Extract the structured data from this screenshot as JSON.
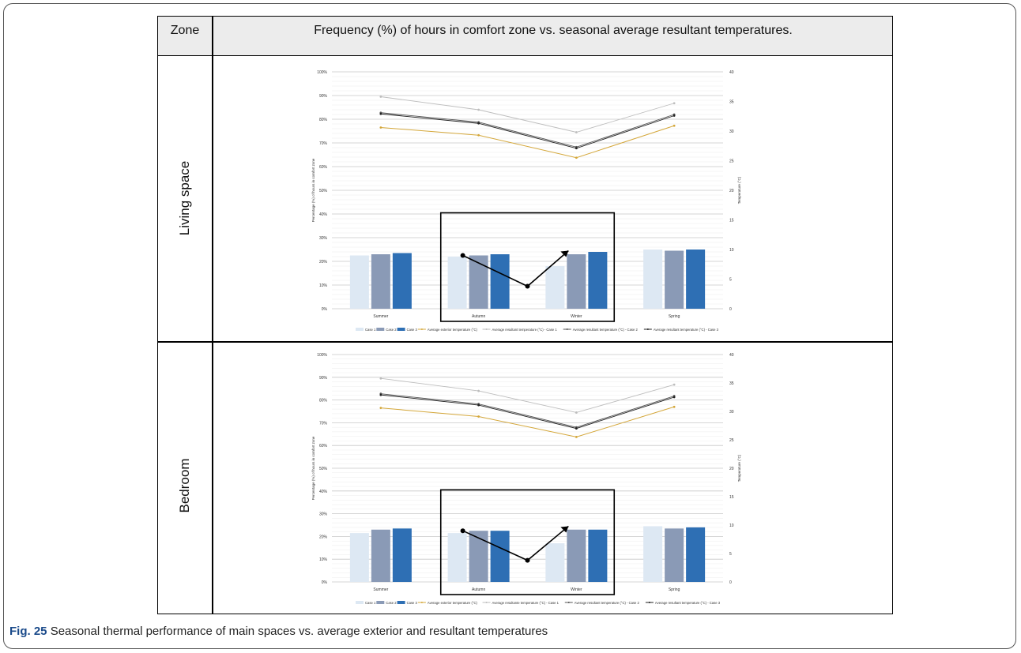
{
  "table": {
    "header_zone": "Zone",
    "header_freq": "Frequency (%) of hours in comfort zone vs. seasonal average resultant temperatures.",
    "rows": [
      "Living space",
      "Bedroom"
    ]
  },
  "caption": {
    "label": "Fig. 25",
    "text": "Seasonal thermal performance of main spaces vs. average exterior and resultant temperatures"
  },
  "colors": {
    "case1": "#dde8f3",
    "case2": "#8a9ab6",
    "case3": "#2e6fb4",
    "exterior": "#d4a73a",
    "resultant1": "#bdbdbd",
    "resultant2": "#555555",
    "resultant3": "#222222"
  },
  "chart_data": [
    {
      "type": "bar",
      "zone": "Living space",
      "categories": [
        "Summer",
        "Autumn",
        "Winter",
        "Spring"
      ],
      "ylabel": "Percentage (%) of hours in comfort zone",
      "y2label": "Temperature (°C)",
      "ylim": [
        0,
        100
      ],
      "y2lim": [
        0,
        40
      ],
      "yticks": [
        "0%",
        "10%",
        "20%",
        "30%",
        "40%",
        "50%",
        "60%",
        "70%",
        "80%",
        "90%",
        "100%"
      ],
      "y2ticks": [
        "0",
        "5",
        "10",
        "15",
        "20",
        "25",
        "30",
        "35",
        "40"
      ],
      "series": [
        {
          "name": "Case 1",
          "kind": "bar",
          "values": [
            22.5,
            22,
            18,
            25
          ]
        },
        {
          "name": "Case 2",
          "kind": "bar",
          "values": [
            23,
            22.5,
            23,
            24.5
          ]
        },
        {
          "name": "Case 3",
          "kind": "bar",
          "values": [
            23.5,
            23,
            24,
            25
          ]
        },
        {
          "name": "Average exterior temperature (°C)",
          "kind": "line",
          "axis": "y2",
          "values": [
            30.6,
            29.3,
            25.5,
            30.9
          ]
        },
        {
          "name": "Average resultant temperature (°C) - Case 1",
          "kind": "line",
          "axis": "y2",
          "values": [
            35.8,
            33.6,
            29.8,
            34.7
          ]
        },
        {
          "name": "Average resultant temperature (°C) - Case 2",
          "kind": "line",
          "axis": "y2",
          "values": [
            33.1,
            31.5,
            27.3,
            32.8
          ]
        },
        {
          "name": "Average resultant temperature (°C) - Case 3",
          "kind": "line",
          "axis": "y2",
          "values": [
            32.9,
            31.3,
            27.1,
            32.6
          ]
        }
      ],
      "legend": [
        "Case 1",
        "Case 2",
        "Case 3",
        "Average exterior temperature (°C)",
        "Average resultant temperature (°C) - Case 1",
        "Average resultant temperature (°C) - Case 2",
        "Average resultant temperature (°C) - Case 3"
      ],
      "legend_position": "bottom",
      "annotation": {
        "type": "box-with-arrow",
        "label": ""
      }
    },
    {
      "type": "bar",
      "zone": "Bedroom",
      "categories": [
        "Summer",
        "Autumn",
        "Winter",
        "Spring"
      ],
      "ylabel": "Percentage (%) of hours in comfort zone",
      "y2label": "Temperature (°C)",
      "ylim": [
        0,
        100
      ],
      "y2lim": [
        0,
        40
      ],
      "yticks": [
        "0%",
        "10%",
        "20%",
        "30%",
        "40%",
        "50%",
        "60%",
        "70%",
        "80%",
        "90%",
        "100%"
      ],
      "y2ticks": [
        "0",
        "5",
        "10",
        "15",
        "20",
        "25",
        "30",
        "35",
        "40"
      ],
      "series": [
        {
          "name": "Case 1",
          "kind": "bar",
          "values": [
            21.5,
            21.5,
            17,
            24.5
          ]
        },
        {
          "name": "Case 2",
          "kind": "bar",
          "values": [
            23,
            22.5,
            23,
            23.5
          ]
        },
        {
          "name": "Case 3",
          "kind": "bar",
          "values": [
            23.5,
            22.5,
            23,
            24
          ]
        },
        {
          "name": "Average exterior temperature (°C)",
          "kind": "line",
          "axis": "y2",
          "values": [
            30.6,
            29.1,
            25.5,
            30.8
          ]
        },
        {
          "name": "Average resultante temperature (°C) - Case 1",
          "kind": "line",
          "axis": "y2",
          "values": [
            35.8,
            33.6,
            29.8,
            34.7
          ]
        },
        {
          "name": "Average resultant temperature (°C) - Case 2",
          "kind": "line",
          "axis": "y2",
          "values": [
            33.1,
            31.3,
            27.2,
            32.7
          ]
        },
        {
          "name": "Average resultant temperature (°C) - Case 3",
          "kind": "line",
          "axis": "y2",
          "values": [
            32.9,
            31.1,
            27.0,
            32.5
          ]
        }
      ],
      "legend": [
        "Case 1",
        "Case 2",
        "Case 3",
        "Average exterior temperature (°C)",
        "Average resultante temperature (°C) - Case 1",
        "Average resultant temperature (°C) - Case 2",
        "Average resultant temperature (°C) - Case 3"
      ],
      "legend_position": "bottom",
      "annotation": {
        "type": "box-with-arrow",
        "label": ""
      }
    }
  ]
}
